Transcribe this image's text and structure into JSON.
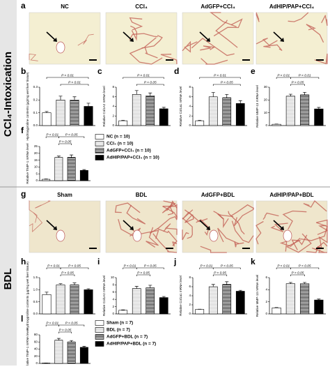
{
  "sections": [
    {
      "side_label": "CCl₄-Intoxication",
      "image_panel": {
        "label": "a",
        "titles": [
          "NC",
          "CCl₄",
          "AdGFP+CCl₄",
          "AdHIP/PAP+CCl₄"
        ]
      },
      "legend": [
        "NC (n = 10)",
        "CCl₄ (n = 10)",
        "AdGFP+CCl₄ (n = 10)",
        "AdHIP/PAP+CCl₄ (n = 10)"
      ]
    },
    {
      "side_label": "BDL",
      "image_panel": {
        "label": "g",
        "titles": [
          "Sham",
          "BDL",
          "AdGFP+BDL",
          "AdHIP/PAP+BDL"
        ]
      },
      "legend": [
        "Sham (n = 7)",
        "BDL (n = 7)",
        "AdGFP+BDL (n = 7)",
        "AdHIP/PAP+BDL (n = 7)"
      ]
    }
  ],
  "bar_styles": [
    "white",
    "light-stripes",
    "stripes",
    "black"
  ],
  "chart_data": [
    {
      "type": "bar",
      "label": "b",
      "ylabel": "Hydroxyproline contents (μg/mg wet liver tissue)",
      "values": [
        0.1,
        0.2,
        0.2,
        0.15
      ],
      "errors": [
        0.01,
        0.03,
        0.025,
        0.025
      ],
      "ylim": [
        0,
        0.3
      ],
      "yticks": [
        {
          "value": 0,
          "label": "0.0"
        },
        0.1,
        0.2,
        0.3
      ],
      "annotations": [
        "P < 0.01",
        "P < 0.01"
      ]
    },
    {
      "type": "bar",
      "label": "c",
      "ylabel": "Relative Col1A2 mRNA level",
      "values": [
        1,
        6.5,
        6.2,
        3.5
      ],
      "errors": [
        0.1,
        0.8,
        0.6,
        0.3
      ],
      "ylim": [
        0,
        8
      ],
      "yticks": [
        0,
        2,
        4,
        6,
        8
      ],
      "annotations": [
        "P < 0.01",
        "P < 0.05"
      ]
    },
    {
      "type": "bar",
      "label": "d",
      "ylabel": "Relative Col1a1 mRNA level",
      "values": [
        1,
        6,
        5.8,
        4.6
      ],
      "errors": [
        0.1,
        0.9,
        0.7,
        0.6
      ],
      "ylim": [
        0,
        8
      ],
      "yticks": [
        0,
        2,
        4,
        6,
        8
      ],
      "annotations": [
        "P < 0.01",
        "P < 0.05"
      ]
    },
    {
      "type": "bar",
      "label": "e",
      "ylabel": "Relative MMP-13 mRNA level",
      "values": [
        1,
        23,
        24,
        13
      ],
      "errors": [
        0.2,
        1.5,
        2,
        1.2
      ],
      "ylim": [
        0,
        30
      ],
      "yticks": [
        0,
        10,
        20,
        30
      ],
      "annotations": [
        "P < 0.01",
        "P < 0.01",
        "P > 0.05"
      ]
    },
    {
      "type": "bar",
      "label": "f",
      "ylabel": "Relative TIMP-1 mRNA level",
      "values": [
        1,
        17,
        17,
        7.5
      ],
      "errors": [
        0.2,
        1,
        1.8,
        0.6
      ],
      "ylim": [
        0,
        25
      ],
      "yticks": [
        0,
        5,
        10,
        15,
        20,
        25
      ],
      "annotations": [
        "P < 0.01",
        "P < 0.05",
        "P > 0.05"
      ]
    },
    {
      "type": "bar",
      "label": "h",
      "ylabel": "Hydroxyproline contents (μg/mg wet liver tissue)",
      "values": [
        0.8,
        1.2,
        1.2,
        1.0
      ],
      "errors": [
        0.1,
        0.05,
        0.08,
        0.04
      ],
      "ylim": [
        0,
        1.5
      ],
      "yticks": [
        {
          "value": 0,
          "label": "0.0"
        },
        0.5,
        {
          "value": 1,
          "label": "1.0"
        },
        1.5
      ],
      "annotations": [
        "P < 0.01",
        "P < 0.05",
        "P > 0.05"
      ]
    },
    {
      "type": "bar",
      "label": "i",
      "ylabel": "Relative Col1A2 mRNA level",
      "values": [
        1,
        7,
        7.2,
        4.5
      ],
      "errors": [
        0.1,
        0.6,
        0.7,
        0.3
      ],
      "ylim": [
        0,
        10
      ],
      "yticks": [
        0,
        2,
        4,
        6,
        8,
        10
      ],
      "annotations": [
        "P < 0.01",
        "P < 0.05",
        "P > 0.05"
      ]
    },
    {
      "type": "bar",
      "label": "j",
      "ylabel": "Relative Col1a1 mRNA level",
      "values": [
        1,
        6,
        6.5,
        5
      ],
      "errors": [
        0.05,
        0.5,
        0.6,
        0.2
      ],
      "ylim": [
        0,
        8
      ],
      "yticks": [
        0,
        2,
        4,
        6,
        8
      ],
      "annotations": [
        "P < 0.01",
        "P < 0.05",
        "P > 0.05"
      ]
    },
    {
      "type": "bar",
      "label": "k",
      "ylabel": "Relative MMP-13 mRNA level",
      "values": [
        1,
        5,
        5,
        2.3
      ],
      "errors": [
        0.05,
        0.2,
        0.2,
        0.15
      ],
      "ylim": [
        0,
        6
      ],
      "yticks": [
        0,
        2,
        4,
        6
      ],
      "annotations": [
        "P < 0.01",
        "P < 0.05",
        "P > 0.05"
      ]
    },
    {
      "type": "bar",
      "label": "l",
      "ylabel": "Relative TIMP-1 mRNA level",
      "values": [
        1,
        65,
        60,
        45
      ],
      "errors": [
        0.2,
        5,
        4,
        3
      ],
      "ylim": [
        0,
        80
      ],
      "yticks": [
        0,
        20,
        40,
        60,
        80
      ],
      "annotations": [
        "P < 0.01",
        "P < 0.05",
        "P > 0.05"
      ]
    }
  ]
}
